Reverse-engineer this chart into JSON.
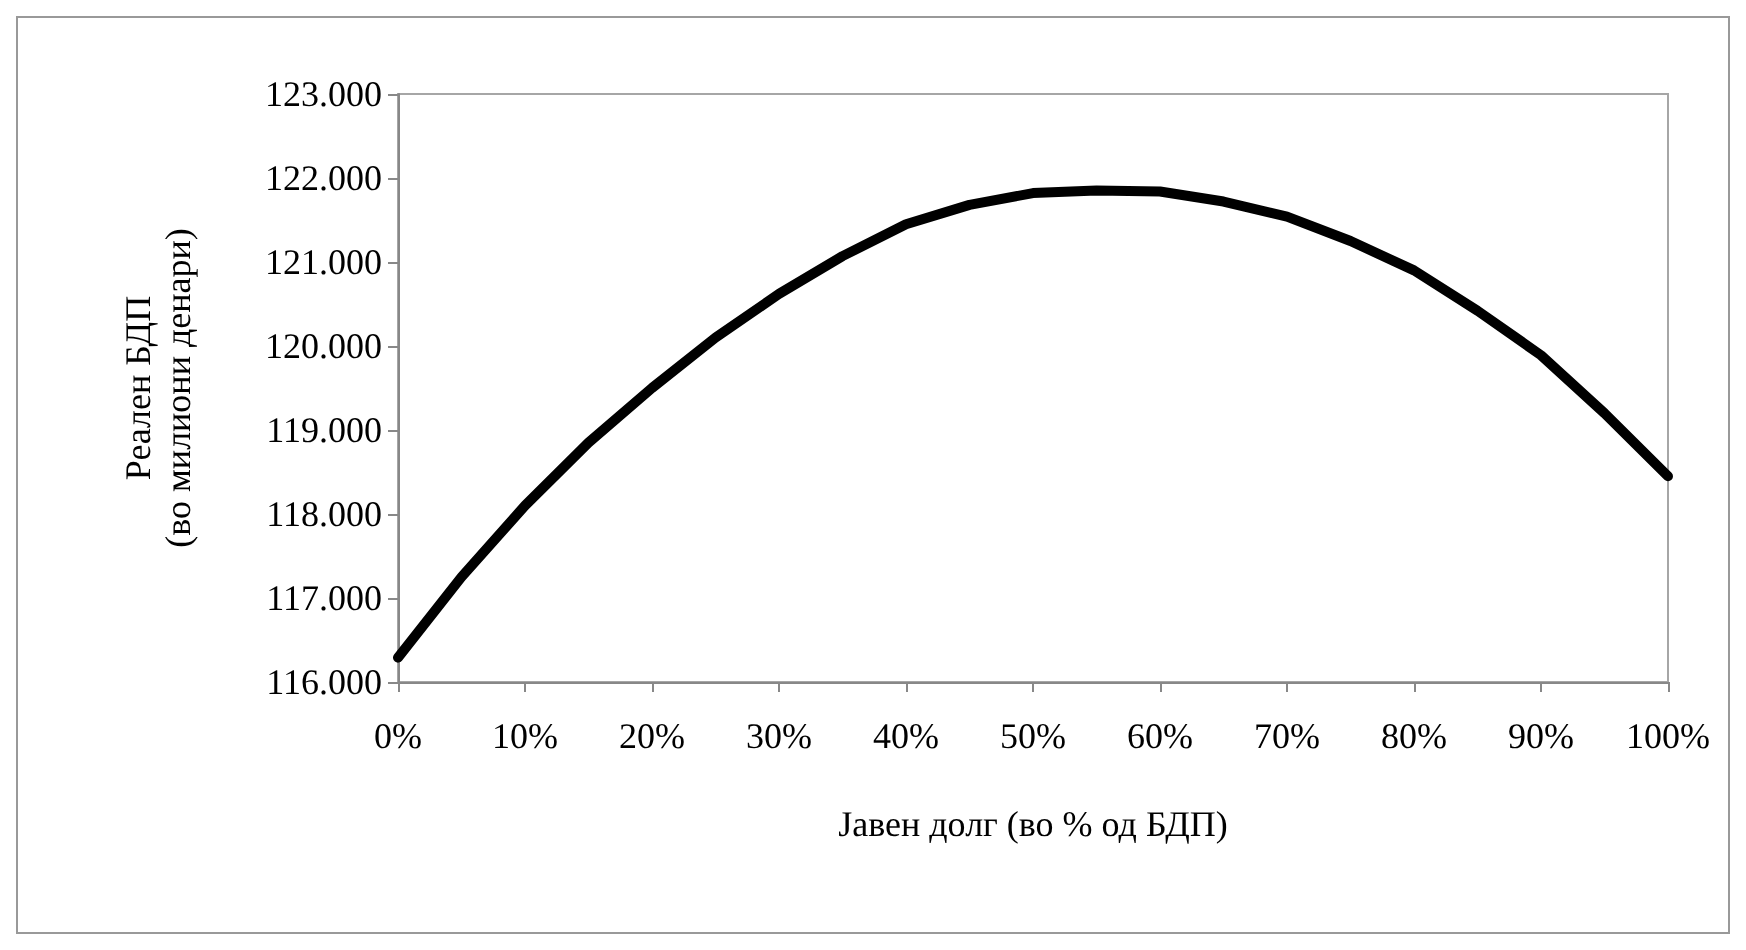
{
  "chart_data": {
    "type": "line",
    "xlabel": "Јавен долг (во % од БДП)",
    "ylabel": "Реален БДП\n(во милиони денари)",
    "x": [
      0,
      5,
      10,
      15,
      20,
      25,
      30,
      35,
      40,
      45,
      50,
      55,
      60,
      65,
      70,
      75,
      80,
      85,
      90,
      95,
      100
    ],
    "series": [
      {
        "color": "#000000",
        "values": [
          116290,
          117250,
          118100,
          118850,
          119500,
          120100,
          120620,
          121070,
          121450,
          121680,
          121820,
          121850,
          121840,
          121720,
          121540,
          121250,
          120900,
          120420,
          119890,
          119200,
          118450
        ]
      }
    ],
    "xlim": [
      0,
      100
    ],
    "xticks": [
      {
        "value": 0,
        "label": "0%"
      },
      {
        "value": 10,
        "label": "10%"
      },
      {
        "value": 20,
        "label": "20%"
      },
      {
        "value": 30,
        "label": "30%"
      },
      {
        "value": 40,
        "label": "40%"
      },
      {
        "value": 50,
        "label": "50%"
      },
      {
        "value": 60,
        "label": "60%"
      },
      {
        "value": 70,
        "label": "70%"
      },
      {
        "value": 80,
        "label": "80%"
      },
      {
        "value": 90,
        "label": "90%"
      },
      {
        "value": 100,
        "label": "100%"
      }
    ],
    "ylim": [
      116000,
      123000
    ],
    "yticks": [
      {
        "value": 116000,
        "label": "116.000"
      },
      {
        "value": 117000,
        "label": "117.000"
      },
      {
        "value": 118000,
        "label": "118.000"
      },
      {
        "value": 119000,
        "label": "119.000"
      },
      {
        "value": 120000,
        "label": "120.000"
      },
      {
        "value": 121000,
        "label": "121.000"
      },
      {
        "value": 122000,
        "label": "122.000"
      },
      {
        "value": 123000,
        "label": "123.000"
      }
    ],
    "grid": false,
    "marker": "none",
    "line_style": "solid"
  }
}
